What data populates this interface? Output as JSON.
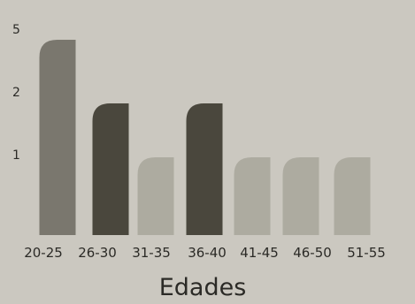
{
  "chart_data": {
    "type": "bar",
    "title": "",
    "xlabel": "Edades",
    "ylabel": "",
    "categories": [
      "20-25",
      "26-30",
      "31-35",
      "36-40",
      "41-45",
      "46-50",
      "51-55"
    ],
    "values": [
      5,
      2,
      1,
      2,
      1,
      1,
      1
    ],
    "y_ticks": [
      "1",
      "2",
      "5"
    ],
    "grid": false,
    "legend": "none",
    "bar_colors": [
      "#7a776e",
      "#4a473d",
      "#adaba0",
      "#4a473d",
      "#adaba0",
      "#adaba0",
      "#adaba0"
    ]
  }
}
